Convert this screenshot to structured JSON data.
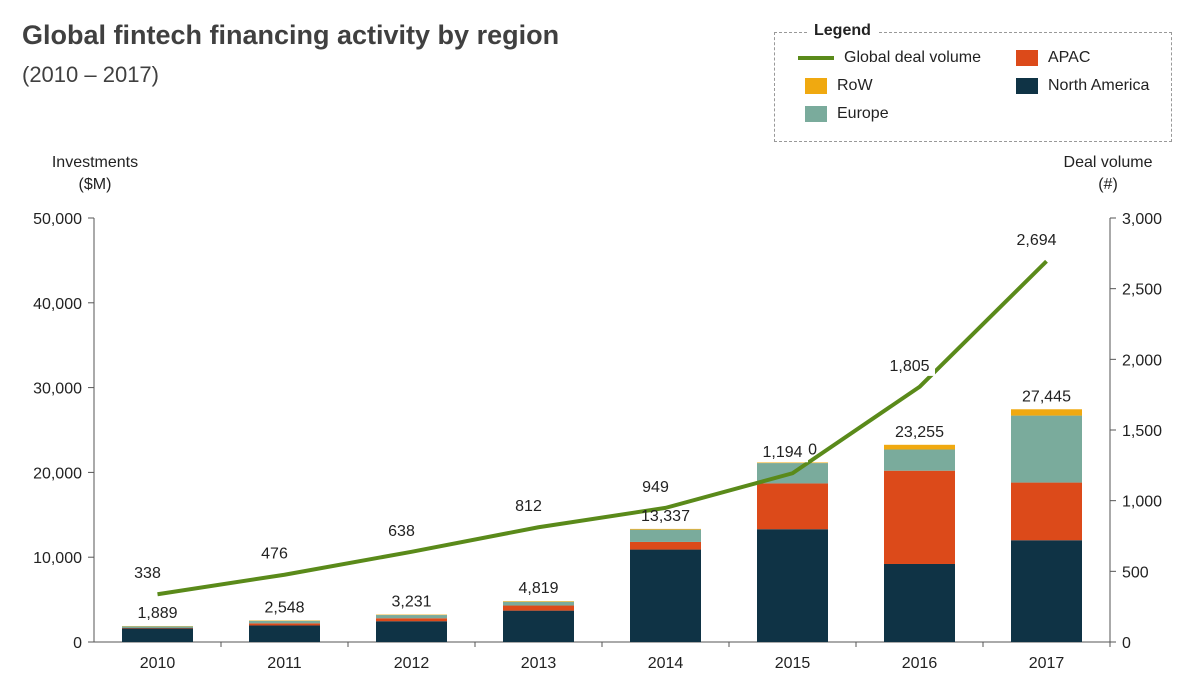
{
  "header": {
    "title": "Global fintech financing activity by region",
    "subtitle": "(2010 – 2017)"
  },
  "legend": {
    "title": "Legend",
    "items": [
      {
        "label": "Global deal volume",
        "kind": "line",
        "color": "#5a8a1a"
      },
      {
        "label": "APAC",
        "kind": "bar",
        "color": "#dc4a1a"
      },
      {
        "label": "RoW",
        "kind": "bar",
        "color": "#f0a910"
      },
      {
        "label": "North America",
        "kind": "bar",
        "color": "#0f3345"
      },
      {
        "label": "Europe",
        "kind": "bar",
        "color": "#7aab9c"
      }
    ]
  },
  "chart_data": {
    "type": "bar",
    "title": "Global fintech financing activity by region",
    "subtitle": "(2010 – 2017)",
    "categories": [
      "2010",
      "2011",
      "2012",
      "2013",
      "2014",
      "2015",
      "2016",
      "2017"
    ],
    "ylabel_left": [
      "Investments",
      "($M)"
    ],
    "ylabel_right": [
      "Deal volume",
      "(#)"
    ],
    "ylim_left": [
      0,
      50000
    ],
    "ylim_right": [
      0,
      3000
    ],
    "yticks_left": [
      "0",
      "10,000",
      "20,000",
      "30,000",
      "40,000",
      "50,000"
    ],
    "yticks_right": [
      "0",
      "500",
      "1,000",
      "1,500",
      "2,000",
      "2,500",
      "3,000"
    ],
    "yticks_left_values": [
      0,
      10000,
      20000,
      30000,
      40000,
      50000
    ],
    "yticks_right_values": [
      0,
      500,
      1000,
      1500,
      2000,
      2500,
      3000
    ],
    "series": [
      {
        "name": "North America",
        "axis": "left",
        "color": "#0f3345",
        "values": [
          1600,
          1950,
          2450,
          3700,
          10900,
          13300,
          9200,
          12000
        ]
      },
      {
        "name": "APAC",
        "axis": "left",
        "color": "#dc4a1a",
        "values": [
          50,
          250,
          350,
          600,
          900,
          5400,
          11000,
          6800
        ]
      },
      {
        "name": "Europe",
        "axis": "left",
        "color": "#7aab9c",
        "values": [
          200,
          300,
          380,
          450,
          1450,
          2400,
          2500,
          7900
        ]
      },
      {
        "name": "RoW",
        "axis": "left",
        "color": "#f0a910",
        "values": [
          39,
          48,
          51,
          69,
          87,
          70,
          555,
          745
        ]
      }
    ],
    "totals": [
      1889,
      2548,
      3231,
      4819,
      13337,
      21170,
      23255,
      27445
    ],
    "total_labels": [
      "1,889",
      "2,548",
      "3,231",
      "4,819",
      "13,337",
      "21,170",
      "23,255",
      "27,445"
    ],
    "line": {
      "name": "Global deal volume",
      "axis": "right",
      "color": "#5a8a1a",
      "values": [
        338,
        476,
        638,
        812,
        949,
        1194,
        1805,
        2694
      ],
      "labels": [
        "338",
        "476",
        "638",
        "812",
        "949",
        "1,194",
        "1,805",
        "2,694"
      ]
    }
  }
}
